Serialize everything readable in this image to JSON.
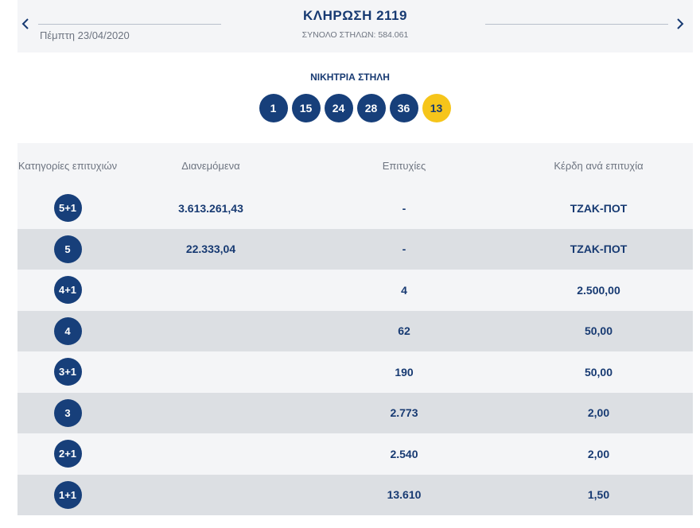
{
  "header": {
    "title": "ΚΛΗΡΩΣΗ 2119",
    "date": "Πέμπτη 23/04/2020",
    "total_columns": "ΣΥΝΟΛΟ ΣΤΗΛΩΝ: 584.061",
    "prev_icon": "chevron-left-icon",
    "next_icon": "chevron-right-icon"
  },
  "winning": {
    "label": "ΝΙΚΗΤΡΙΑ ΣΤΗΛΗ",
    "numbers": [
      "1",
      "15",
      "24",
      "28",
      "36"
    ],
    "joker": "13"
  },
  "table": {
    "headers": {
      "category": "Κατηγορίες επιτυχιών",
      "distributed": "Διανεμόμενα",
      "winners": "Επιτυχίες",
      "prize": "Κέρδη ανά επιτυχία"
    },
    "rows": [
      {
        "category": "5+1",
        "distributed": "3.613.261,43",
        "winners": "-",
        "prize": "ΤΖΑΚ-ΠΟΤ"
      },
      {
        "category": "5",
        "distributed": "22.333,04",
        "winners": "-",
        "prize": "ΤΖΑΚ-ΠΟΤ"
      },
      {
        "category": "4+1",
        "distributed": "",
        "winners": "4",
        "prize": "2.500,00"
      },
      {
        "category": "4",
        "distributed": "",
        "winners": "62",
        "prize": "50,00"
      },
      {
        "category": "3+1",
        "distributed": "",
        "winners": "190",
        "prize": "50,00"
      },
      {
        "category": "3",
        "distributed": "",
        "winners": "2.773",
        "prize": "2,00"
      },
      {
        "category": "2+1",
        "distributed": "",
        "winners": "2.540",
        "prize": "2,00"
      },
      {
        "category": "1+1",
        "distributed": "",
        "winners": "13.610",
        "prize": "1,50"
      }
    ]
  },
  "colors": {
    "navy": "#173f7a",
    "joker_yellow": "#f6c51a",
    "row_light": "#f4f5f7",
    "row_dark": "#dcdfe3"
  }
}
